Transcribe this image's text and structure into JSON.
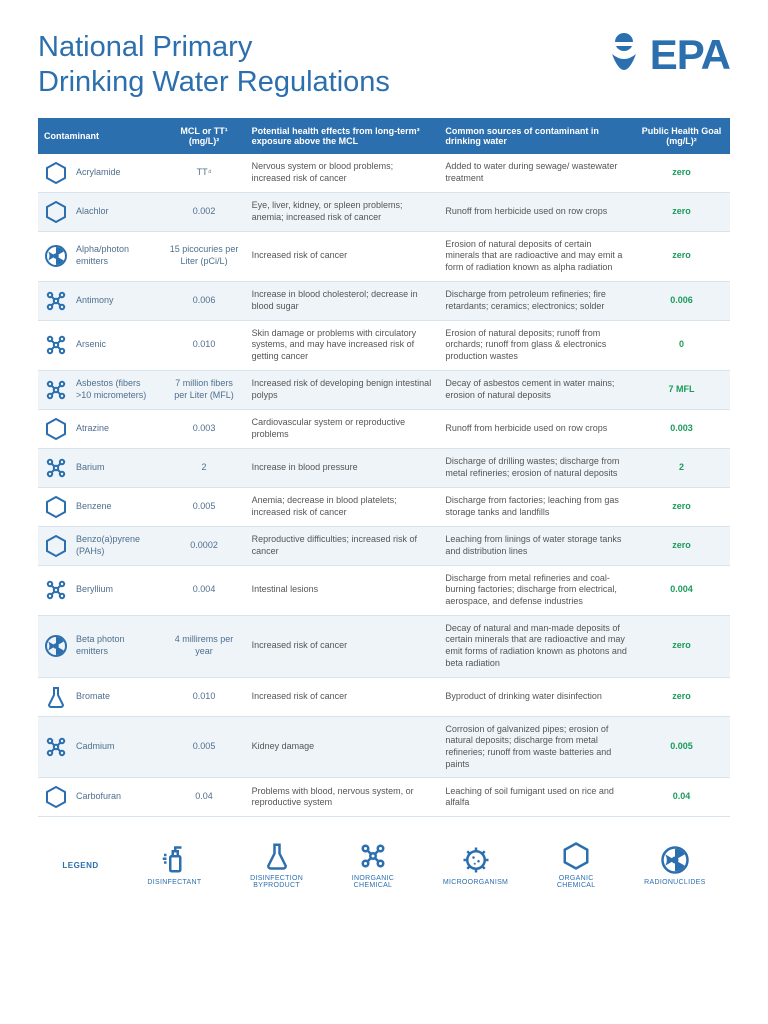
{
  "title_line1": "National Primary",
  "title_line2": "Drinking Water Regulations",
  "logo_text": "EPA",
  "columns": {
    "c1": "Contaminant",
    "c2": "MCL or TT¹ (mg/L)²",
    "c3": "Potential health effects from long-term³ exposure above the MCL",
    "c4": "Common sources of contaminant in drinking water",
    "c5": "Public Health Goal (mg/L)²"
  },
  "rows": [
    {
      "icon": "organic",
      "name": "Acrylamide",
      "mcl": "TT⁴",
      "health": "Nervous system or blood problems; increased risk of cancer",
      "source": "Added to water during sewage/ wastewater treatment",
      "goal": "zero"
    },
    {
      "icon": "organic",
      "name": "Alachlor",
      "mcl": "0.002",
      "health": "Eye, liver, kidney, or spleen problems; anemia; increased risk of cancer",
      "source": "Runoff from herbicide used on row crops",
      "goal": "zero"
    },
    {
      "icon": "radio",
      "name": "Alpha/photon emitters",
      "mcl": "15 picocuries per Liter (pCi/L)",
      "health": "Increased risk of cancer",
      "source": "Erosion of natural deposits of certain minerals that are radioactive and may emit a form of radiation known as alpha radiation",
      "goal": "zero"
    },
    {
      "icon": "inorganic",
      "name": "Antimony",
      "mcl": "0.006",
      "health": "Increase in blood cholesterol; decrease in blood sugar",
      "source": "Discharge from petroleum refineries; fire retardants; ceramics; electronics; solder",
      "goal": "0.006"
    },
    {
      "icon": "inorganic",
      "name": "Arsenic",
      "mcl": "0.010",
      "health": "Skin damage or problems with circulatory systems, and may have increased risk of getting cancer",
      "source": "Erosion of natural deposits; runoff from orchards; runoff from glass & electronics production wastes",
      "goal": "0"
    },
    {
      "icon": "inorganic",
      "name": "Asbestos (fibers >10 micrometers)",
      "mcl": "7 million fibers per Liter (MFL)",
      "health": "Increased risk of developing benign intestinal polyps",
      "source": "Decay of asbestos cement in water mains; erosion of natural deposits",
      "goal": "7 MFL"
    },
    {
      "icon": "organic",
      "name": "Atrazine",
      "mcl": "0.003",
      "health": "Cardiovascular system or reproductive problems",
      "source": "Runoff from herbicide used on row crops",
      "goal": "0.003"
    },
    {
      "icon": "inorganic",
      "name": "Barium",
      "mcl": "2",
      "health": "Increase in blood pressure",
      "source": "Discharge of drilling wastes; discharge from metal refineries; erosion of natural deposits",
      "goal": "2"
    },
    {
      "icon": "organic",
      "name": "Benzene",
      "mcl": "0.005",
      "health": "Anemia; decrease in blood platelets; increased risk of cancer",
      "source": "Discharge from factories; leaching from gas storage tanks and landfills",
      "goal": "zero"
    },
    {
      "icon": "organic",
      "name": "Benzo(a)pyrene (PAHs)",
      "mcl": "0.0002",
      "health": "Reproductive difficulties; increased risk of cancer",
      "source": "Leaching from linings of water storage tanks and distribution lines",
      "goal": "zero"
    },
    {
      "icon": "inorganic",
      "name": "Beryllium",
      "mcl": "0.004",
      "health": "Intestinal lesions",
      "source": "Discharge from metal refineries and coal-burning factories; discharge from electrical, aerospace, and defense industries",
      "goal": "0.004"
    },
    {
      "icon": "radio",
      "name": "Beta photon emitters",
      "mcl": "4 millirems per year",
      "health": "Increased risk of cancer",
      "source": "Decay of natural and man-made deposits of certain minerals that are radioactive and may emit forms of radiation known as photons and beta radiation",
      "goal": "zero"
    },
    {
      "icon": "byproduct",
      "name": "Bromate",
      "mcl": "0.010",
      "health": "Increased risk of cancer",
      "source": "Byproduct of drinking water disinfection",
      "goal": "zero"
    },
    {
      "icon": "inorganic",
      "name": "Cadmium",
      "mcl": "0.005",
      "health": "Kidney damage",
      "source": "Corrosion of galvanized pipes; erosion of natural deposits; discharge from metal refineries; runoff from waste batteries and paints",
      "goal": "0.005"
    },
    {
      "icon": "organic",
      "name": "Carbofuran",
      "mcl": "0.04",
      "health": "Problems with blood, nervous system, or reproductive system",
      "source": "Leaching of soil fumigant used on rice and alfalfa",
      "goal": "0.04"
    }
  ],
  "legend_label": "LEGEND",
  "legend": [
    {
      "icon": "disinfectant",
      "label": "DISINFECTANT"
    },
    {
      "icon": "byproduct",
      "label": "DISINFECTION\nBYPRODUCT"
    },
    {
      "icon": "inorganic",
      "label": "INORGANIC\nCHEMICAL"
    },
    {
      "icon": "micro",
      "label": "MICROORGANISM"
    },
    {
      "icon": "organic",
      "label": "ORGANIC\nCHEMICAL"
    },
    {
      "icon": "radio",
      "label": "RADIONUCLIDES"
    }
  ],
  "colors": {
    "brand": "#2c6fae",
    "goal": "#1a9b5a",
    "row_alt": "#eef4f8",
    "border": "#d9e3eb"
  }
}
